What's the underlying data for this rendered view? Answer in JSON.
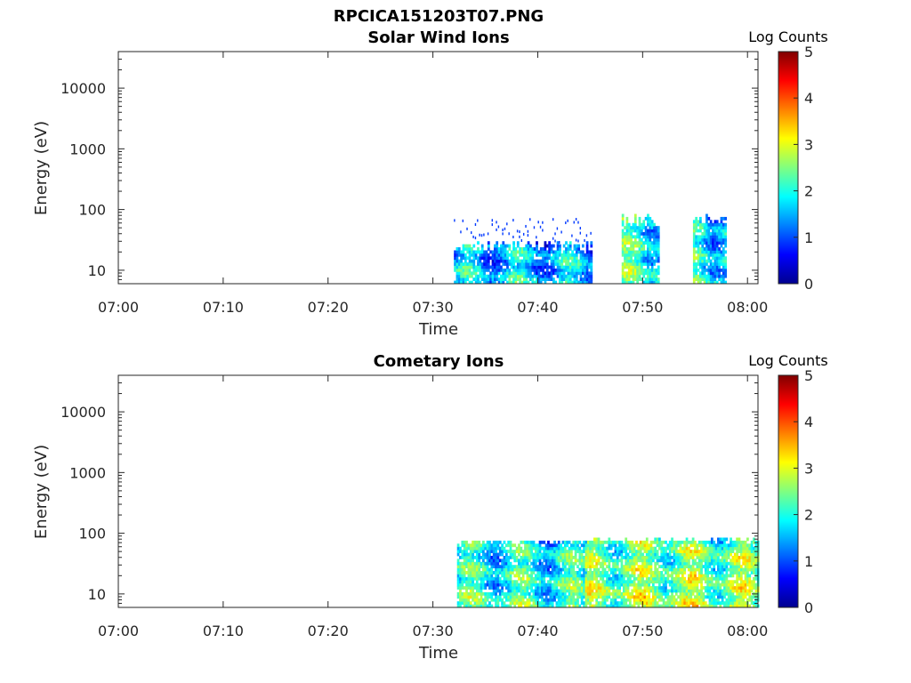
{
  "figure_title": "RPCICA151203T07.PNG",
  "colors": {
    "background": "#ffffff",
    "axis": "#262626",
    "colormap": [
      "#00008f",
      "#0000ff",
      "#0080ff",
      "#00ffff",
      "#80ff80",
      "#ffff00",
      "#ff8000",
      "#ff0000",
      "#800000"
    ]
  },
  "chart_data": [
    {
      "type": "heatmap",
      "title": "Solar Wind Ions",
      "xlabel": "Time",
      "ylabel": "Energy (eV)",
      "y_scale": "log",
      "xlim": [
        "07:00",
        "08:01"
      ],
      "ylim": [
        6,
        40000
      ],
      "x_ticks": [
        "07:00",
        "07:10",
        "07:20",
        "07:30",
        "07:40",
        "07:50",
        "08:00"
      ],
      "y_ticks": [
        "10",
        "100",
        "1000",
        "10000"
      ],
      "colorbar": {
        "label": "Log Counts",
        "range": [
          0,
          5
        ],
        "ticks": [
          "0",
          "1",
          "2",
          "3",
          "4",
          "5"
        ]
      },
      "activity": [
        {
          "start": "07:32",
          "end": "07:45",
          "emax_eV": 30,
          "sparse_to_eV": 75,
          "level": 1.0
        },
        {
          "start": "07:48",
          "end": "07:51.5",
          "emax_eV": 78,
          "level": 1.6
        },
        {
          "start": "07:54.8",
          "end": "07:57.8",
          "emax_eV": 78,
          "level": 1.4
        }
      ]
    },
    {
      "type": "heatmap",
      "title": "Cometary Ions",
      "xlabel": "Time",
      "ylabel": "Energy (eV)",
      "y_scale": "log",
      "xlim": [
        "07:00",
        "08:01"
      ],
      "ylim": [
        6,
        40000
      ],
      "x_ticks": [
        "07:00",
        "07:10",
        "07:20",
        "07:30",
        "07:40",
        "07:50",
        "08:00"
      ],
      "y_ticks": [
        "10",
        "100",
        "1000",
        "10000"
      ],
      "colorbar": {
        "label": "Log Counts",
        "range": [
          0,
          5
        ],
        "ticks": [
          "0",
          "1",
          "2",
          "3",
          "4",
          "5"
        ]
      },
      "activity": [
        {
          "start": "07:32.3",
          "end": "07:44.5",
          "emax_eV": 75,
          "level": 1.5
        },
        {
          "start": "07:44.5",
          "end": "08:01",
          "emax_eV": 80,
          "level": 2.0
        }
      ]
    }
  ]
}
